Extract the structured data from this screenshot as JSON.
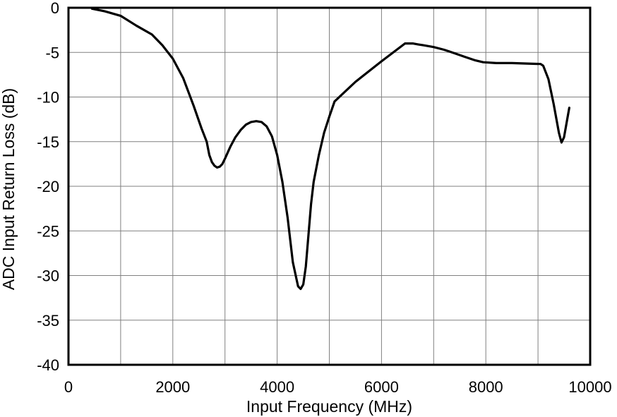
{
  "chart_data": {
    "type": "line",
    "title": "",
    "xlabel": "Input Frequency (MHz)",
    "ylabel": "ADC Input Return Loss (dB)",
    "xlim": [
      0,
      10000
    ],
    "ylim": [
      -40,
      0
    ],
    "xticks": [
      0,
      2000,
      4000,
      6000,
      8000,
      10000
    ],
    "xtick_labels": [
      "0",
      "2000",
      "4000",
      "6000",
      "8000",
      "10000"
    ],
    "yticks": [
      0,
      -5,
      -10,
      -15,
      -20,
      -25,
      -30,
      -35,
      -40
    ],
    "ytick_labels": [
      "0",
      "-5",
      "-10",
      "-15",
      "-20",
      "-25",
      "-30",
      "-35",
      "-40"
    ],
    "x_grid_step": 1000,
    "y_grid_step": 5,
    "grid": true,
    "legend": "none",
    "line_color": "#000000",
    "series": [
      {
        "x": [
          450,
          700,
          1000,
          1300,
          1600,
          1800,
          2000,
          2200,
          2400,
          2550,
          2650,
          2700,
          2750,
          2800,
          2850,
          2900,
          2950,
          3000,
          3100,
          3200,
          3300,
          3400,
          3500,
          3600,
          3700,
          3800,
          3900,
          4000,
          4100,
          4200,
          4300,
          4400,
          4450,
          4500,
          4550,
          4600,
          4650,
          4700,
          4800,
          4900,
          5000,
          5100,
          5500,
          6000,
          6450,
          6500,
          6600,
          6700,
          6800,
          7000,
          7200,
          7400,
          7600,
          7800,
          7950,
          8200,
          8500,
          8800,
          9050,
          9100,
          9200,
          9300,
          9400,
          9450,
          9500,
          9600
        ],
        "y": [
          -0.1,
          -0.4,
          -0.9,
          -2.0,
          -3.0,
          -4.2,
          -5.7,
          -7.9,
          -11.0,
          -13.5,
          -15.0,
          -16.5,
          -17.3,
          -17.7,
          -17.9,
          -17.8,
          -17.5,
          -16.9,
          -15.6,
          -14.5,
          -13.7,
          -13.1,
          -12.8,
          -12.7,
          -12.8,
          -13.3,
          -14.4,
          -16.5,
          -19.5,
          -23.5,
          -28.5,
          -31.2,
          -31.5,
          -31.0,
          -29.0,
          -25.5,
          -22.0,
          -19.5,
          -16.5,
          -14.0,
          -12.2,
          -10.5,
          -8.3,
          -6.0,
          -4.0,
          -4.0,
          -4.0,
          -4.1,
          -4.2,
          -4.4,
          -4.7,
          -5.1,
          -5.5,
          -5.9,
          -6.1,
          -6.2,
          -6.2,
          -6.25,
          -6.3,
          -6.5,
          -8.0,
          -10.8,
          -14.0,
          -15.1,
          -14.5,
          -11.2
        ]
      }
    ]
  }
}
